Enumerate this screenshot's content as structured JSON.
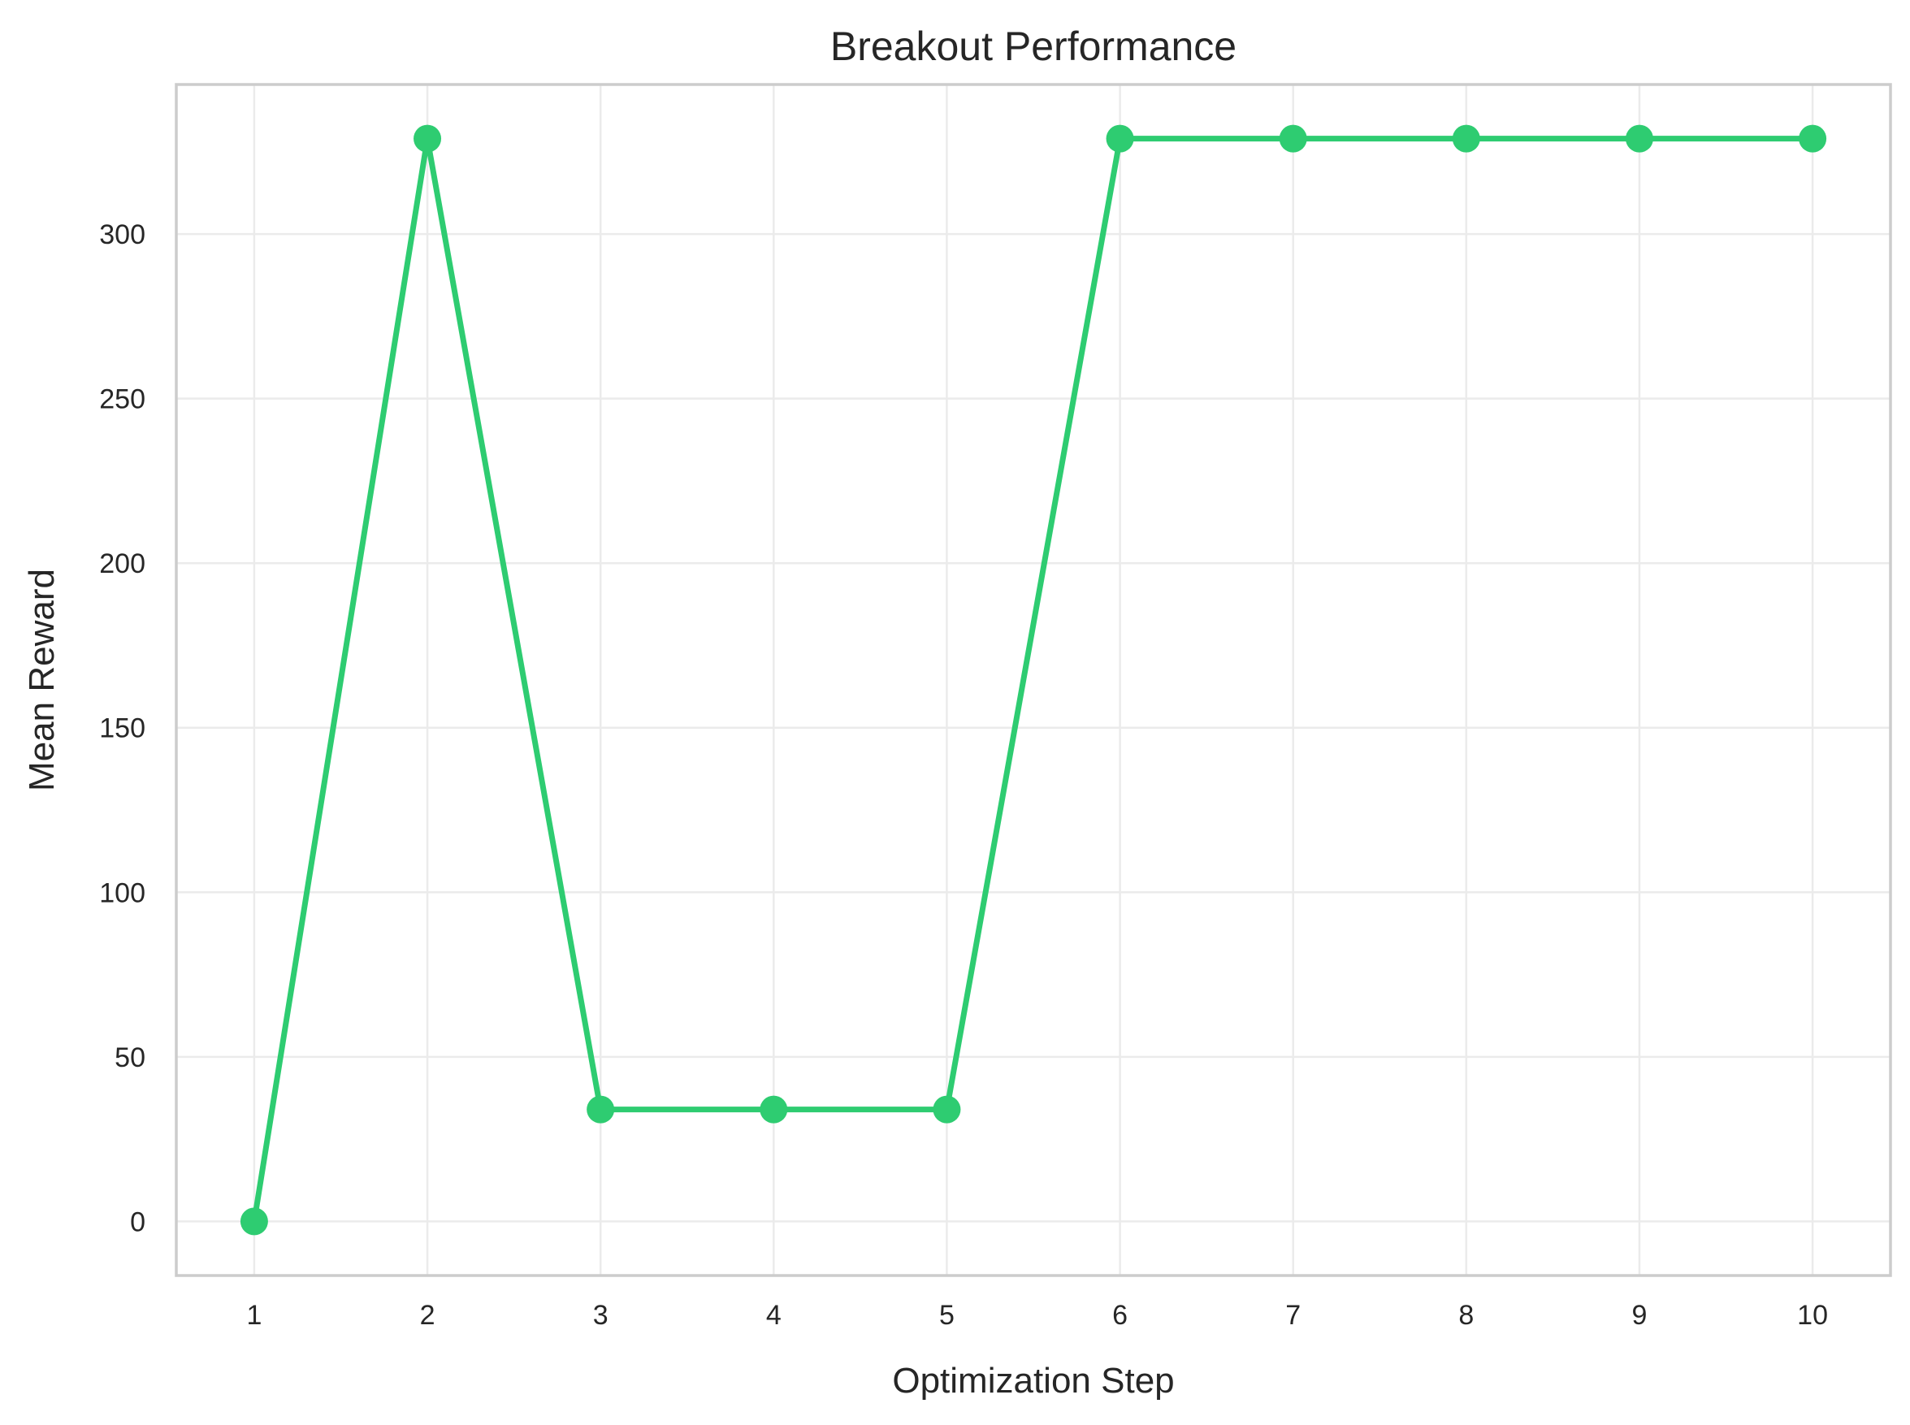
{
  "chart_data": {
    "type": "line",
    "title": "Breakout Performance",
    "xlabel": "Optimization Step",
    "ylabel": "Mean Reward",
    "x": [
      1,
      2,
      3,
      4,
      5,
      6,
      7,
      8,
      9,
      10
    ],
    "series": [
      {
        "values": [
          0,
          329,
          34,
          34,
          34,
          329,
          329,
          329,
          329,
          329
        ]
      }
    ],
    "xticks": [
      1,
      2,
      3,
      4,
      5,
      6,
      7,
      8,
      9,
      10
    ],
    "yticks": [
      0,
      50,
      100,
      150,
      200,
      250,
      300
    ],
    "xlim": [
      0.55,
      10.45
    ],
    "ylim": [
      -16.45,
      345.45
    ],
    "grid": true,
    "legend": "none",
    "colors": {
      "line": "#2ecc71",
      "marker": "#2ecc71",
      "text": "#262626",
      "grid": "#ebebeb",
      "frame": "#cccccc"
    }
  }
}
